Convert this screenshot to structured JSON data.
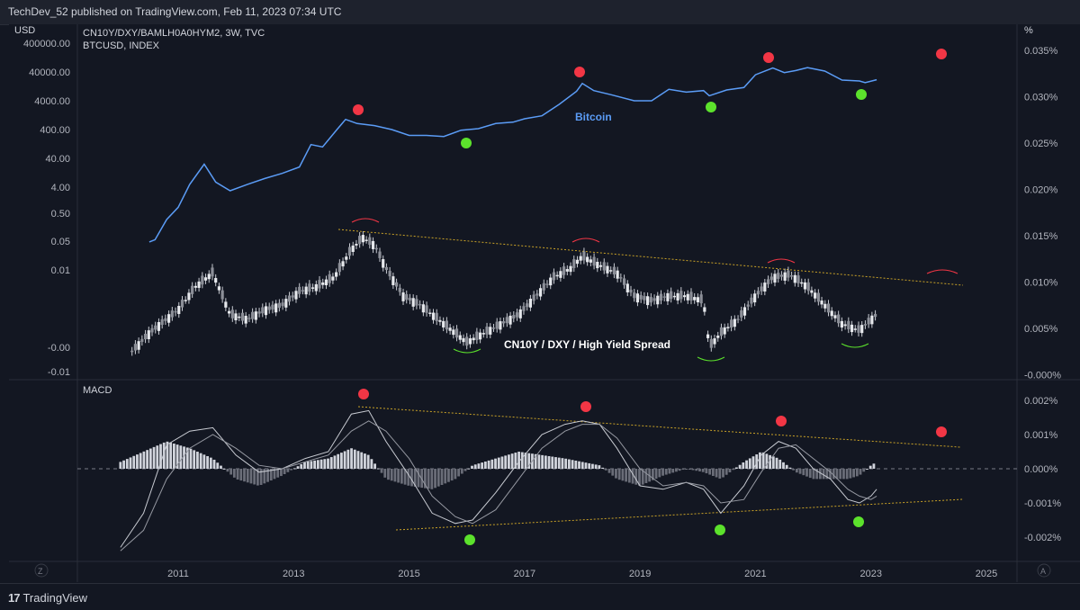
{
  "header": {
    "published": "TechDev_52 published on TradingView.com, Feb 11, 2023 07:34 UTC"
  },
  "footer": {
    "brand": "TradingView",
    "brand_icon": "tradingview-logo-icon"
  },
  "colors": {
    "background": "#131722",
    "bitcoin_line": "#5b9cf6",
    "candles": "#c8cbd2",
    "red_marker": "#f23645",
    "green_marker": "#5ce22c",
    "trendline": "#c9a227"
  },
  "chart_data": [
    {
      "type": "line",
      "title": "CN10Y/DXY/BAMLH0A0HYM2, 3W, TVC",
      "subtitle": "BTCUSD, INDEX",
      "left_axis_unit": "USD",
      "right_axis_unit": "%",
      "left_ticks": [
        "400000.00",
        "40000.00",
        "4000.00",
        "400.00",
        "40.00",
        "4.00",
        "0.50",
        "0.05",
        "0.01",
        "-0.00",
        "-0.01"
      ],
      "right_ticks": [
        "0.035%",
        "0.030%",
        "0.025%",
        "0.020%",
        "0.015%",
        "0.010%",
        "0.005%",
        "-0.000%"
      ],
      "x_ticks": [
        "2011",
        "2013",
        "2015",
        "2017",
        "2019",
        "2021",
        "2023",
        "2025"
      ],
      "log_scale_left": true,
      "series": [
        {
          "name": "Bitcoin",
          "x": [
            2010.5,
            2010.6,
            2010.8,
            2011.0,
            2011.2,
            2011.45,
            2011.65,
            2011.9,
            2012.2,
            2012.5,
            2012.8,
            2013.1,
            2013.3,
            2013.5,
            2013.75,
            2013.9,
            2014.1,
            2014.4,
            2014.7,
            2015.0,
            2015.3,
            2015.6,
            2015.9,
            2016.2,
            2016.5,
            2016.8,
            2017.0,
            2017.3,
            2017.6,
            2017.9,
            2018.0,
            2018.2,
            2018.5,
            2018.9,
            2019.2,
            2019.5,
            2019.8,
            2020.1,
            2020.2,
            2020.5,
            2020.8,
            2021.0,
            2021.3,
            2021.5,
            2021.7,
            2021.9,
            2022.2,
            2022.5,
            2022.8,
            2022.9,
            2023.1
          ],
          "values": [
            0.05,
            0.06,
            0.3,
            0.8,
            5,
            25,
            6,
            3,
            5,
            8,
            12,
            20,
            120,
            100,
            400,
            900,
            650,
            550,
            400,
            250,
            250,
            230,
            380,
            430,
            650,
            720,
            950,
            1200,
            3000,
            8500,
            16000,
            9000,
            6500,
            4000,
            4000,
            10000,
            8000,
            9000,
            6000,
            9500,
            11500,
            32000,
            55000,
            38000,
            45000,
            57000,
            43000,
            21000,
            19500,
            17000,
            21500
          ]
        },
        {
          "name": "CN10Y / DXY / High Yield Spread",
          "type": "candlestick",
          "x": [
            2010.2,
            2010.5,
            2010.8,
            2011.0,
            2011.3,
            2011.6,
            2011.9,
            2012.2,
            2012.5,
            2012.8,
            2013.1,
            2013.4,
            2013.7,
            2014.0,
            2014.2,
            2014.4,
            2014.6,
            2014.9,
            2015.2,
            2015.5,
            2015.8,
            2016.0,
            2016.3,
            2016.6,
            2016.9,
            2017.2,
            2017.5,
            2017.8,
            2018.0,
            2018.3,
            2018.6,
            2018.9,
            2019.2,
            2019.5,
            2019.8,
            2020.1,
            2020.2,
            2020.4,
            2020.7,
            2021.0,
            2021.3,
            2021.6,
            2021.9,
            2022.2,
            2022.5,
            2022.8,
            2023.1
          ],
          "values": [
            0.0025,
            0.0045,
            0.006,
            0.007,
            0.0095,
            0.011,
            0.0065,
            0.006,
            0.007,
            0.0075,
            0.009,
            0.0095,
            0.0105,
            0.0135,
            0.0148,
            0.014,
            0.0115,
            0.0085,
            0.0075,
            0.006,
            0.0045,
            0.0035,
            0.0045,
            0.0055,
            0.0065,
            0.0085,
            0.0105,
            0.0115,
            0.0128,
            0.0118,
            0.011,
            0.0085,
            0.008,
            0.0085,
            0.0085,
            0.008,
            0.003,
            0.0045,
            0.006,
            0.0085,
            0.0105,
            0.0108,
            0.0095,
            0.0075,
            0.0055,
            0.0048,
            0.0065
          ]
        }
      ]
    },
    {
      "type": "line",
      "title": "MACD",
      "right_ticks": [
        "0.002%",
        "0.001%",
        "0.000%",
        "-0.001%",
        "-0.002%"
      ],
      "macd_x": [
        2010.0,
        2010.4,
        2010.8,
        2011.2,
        2011.6,
        2012.0,
        2012.4,
        2012.8,
        2013.2,
        2013.6,
        2014.0,
        2014.3,
        2014.6,
        2015.0,
        2015.4,
        2015.8,
        2016.1,
        2016.5,
        2016.9,
        2017.3,
        2017.7,
        2018.0,
        2018.3,
        2018.6,
        2019.0,
        2019.4,
        2019.8,
        2020.1,
        2020.4,
        2020.8,
        2021.1,
        2021.4,
        2021.7,
        2022.0,
        2022.3,
        2022.6,
        2022.8,
        2023.0,
        2023.1
      ],
      "macd_values": [
        -0.0023,
        -0.0013,
        0.0007,
        0.0011,
        0.0012,
        0.0004,
        -0.0001,
        0.0,
        0.0003,
        0.0005,
        0.0016,
        0.0017,
        0.0008,
        -0.0002,
        -0.0013,
        -0.0016,
        -0.0015,
        -0.0007,
        0.0002,
        0.001,
        0.0013,
        0.0014,
        0.0013,
        0.0006,
        -0.0005,
        -0.0006,
        -0.0004,
        -0.0006,
        -0.0013,
        -0.0005,
        0.0004,
        0.0008,
        0.0006,
        0.0,
        -0.0003,
        -0.0009,
        -0.001,
        -0.0008,
        -0.0006
      ],
      "signal_values": [
        -0.0024,
        -0.0018,
        -0.0003,
        0.0006,
        0.001,
        0.0006,
        0.0001,
        0.0,
        0.0002,
        0.0004,
        0.0011,
        0.0014,
        0.0011,
        0.0003,
        -0.0008,
        -0.0014,
        -0.0016,
        -0.0012,
        -0.0003,
        0.0006,
        0.0011,
        0.0013,
        0.0013,
        0.0009,
        0.0,
        -0.0005,
        -0.0004,
        -0.0005,
        -0.001,
        -0.0009,
        -0.0001,
        0.0006,
        0.0007,
        0.0003,
        -0.0001,
        -0.0006,
        -0.0008,
        -0.0009,
        -0.0008
      ],
      "histogram_values": [
        0.0002,
        0.0005,
        0.0008,
        0.0006,
        0.0003,
        -0.0003,
        -0.0005,
        -0.0002,
        0.0002,
        0.0003,
        0.0006,
        0.0004,
        -0.0003,
        -0.0005,
        -0.0006,
        -0.0003,
        0.0001,
        0.0003,
        0.0005,
        0.0004,
        0.0003,
        0.0002,
        0.0001,
        -0.0003,
        -0.0005,
        -0.0002,
        0.0,
        -0.0001,
        -0.0003,
        0.0002,
        0.0005,
        0.0003,
        -0.0001,
        -0.0003,
        -0.0003,
        -0.0003,
        -0.0002,
        0.0001,
        0.0002
      ]
    }
  ],
  "labels": {
    "bitcoin": "Bitcoin",
    "spread": "CN10Y / DXY / High Yield Spread",
    "z_button": "Z",
    "a_button": "A"
  }
}
